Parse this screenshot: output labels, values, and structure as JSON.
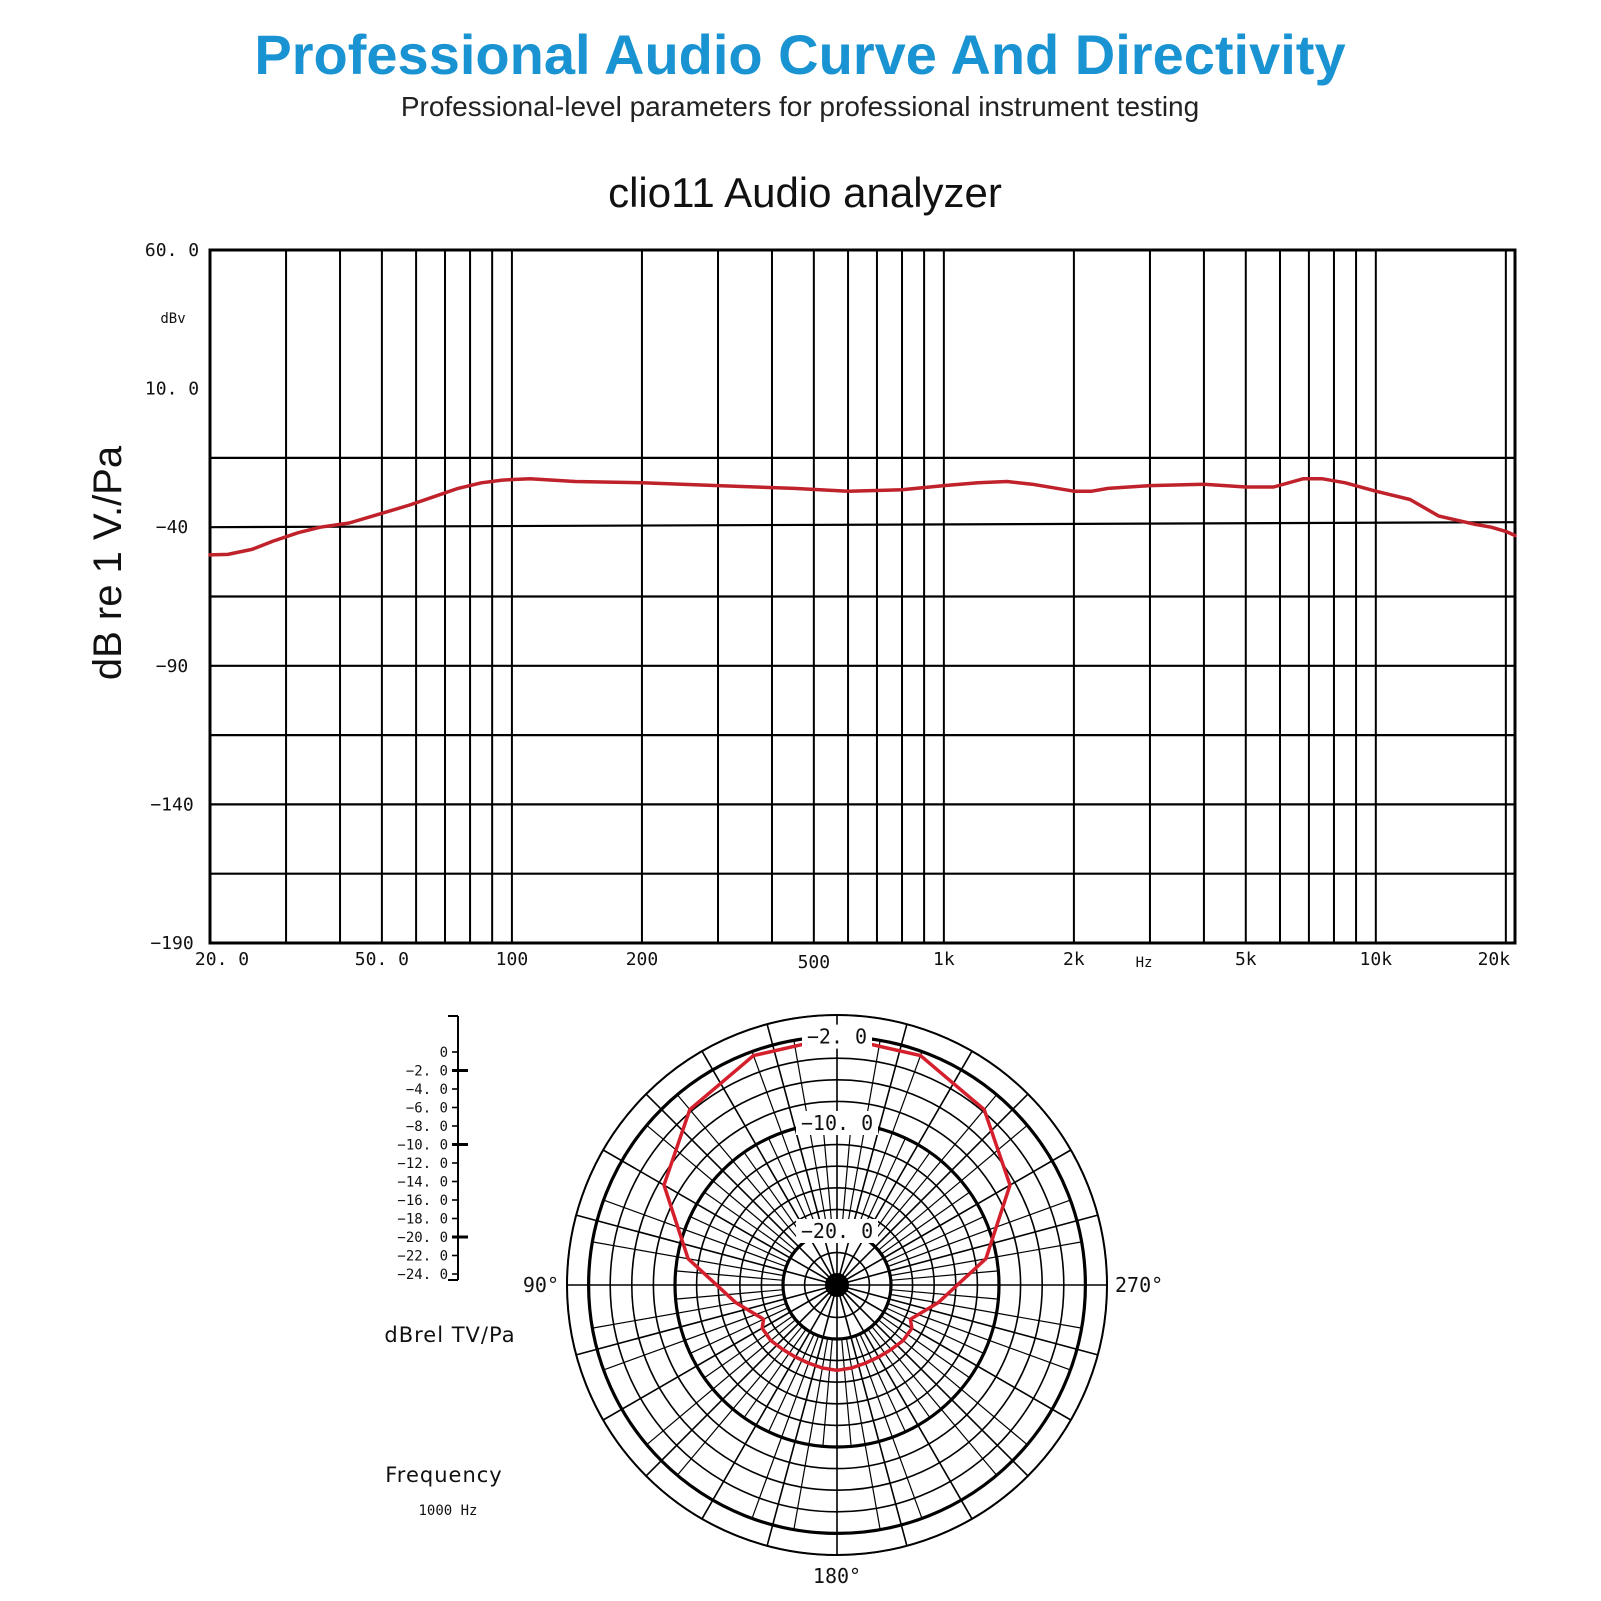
{
  "header": {
    "title": "Professional Audio Curve And Directivity",
    "subtitle": "Professional-level parameters for professional instrument testing",
    "title_color": "#1a93d2"
  },
  "chart_data": [
    {
      "type": "line",
      "title": "clio11 Audio analyzer",
      "ylabel": "dB re 1 V./Pa",
      "y_unit_label": "dBv",
      "x_unit_label": "Hz",
      "x_scale": "log",
      "xlim": [
        20,
        21000
      ],
      "ylim": [
        -190,
        60
      ],
      "x_tick_labels": [
        {
          "value": 20,
          "label": "20. 0"
        },
        {
          "value": 50,
          "label": "50. 0"
        },
        {
          "value": 100,
          "label": "100"
        },
        {
          "value": 200,
          "label": "200"
        },
        {
          "value": 500,
          "label": "500"
        },
        {
          "value": 1000,
          "label": "1k"
        },
        {
          "value": 2000,
          "label": "2k"
        },
        {
          "value": 5000,
          "label": "5k"
        },
        {
          "value": 10000,
          "label": "10k"
        },
        {
          "value": 20000,
          "label": "20k"
        }
      ],
      "y_tick_labels": [
        {
          "value": 60,
          "label": "60. 0"
        },
        {
          "value": 10,
          "label": "10. 0"
        },
        {
          "value": -40,
          "label": "−40"
        },
        {
          "value": -90,
          "label": "−90"
        },
        {
          "value": -140,
          "label": "−140"
        },
        {
          "value": -190,
          "label": "−190"
        }
      ],
      "grid": true,
      "series_color": "#c0222b",
      "series": [
        {
          "x": [
            20,
            22,
            25,
            28,
            32,
            36,
            42,
            50,
            58,
            66,
            75,
            85,
            95,
            110,
            140,
            200,
            300,
            450,
            600,
            800,
            1000,
            1200,
            1400,
            1600,
            2000,
            2200,
            2400,
            3000,
            4000,
            5000,
            5800,
            6800,
            7500,
            8500,
            10000,
            12000,
            14000,
            17000,
            18500,
            20000,
            21000
          ],
          "y": [
            -50,
            -49.8,
            -48,
            -45,
            -42,
            -40,
            -38.5,
            -35,
            -32,
            -29,
            -26,
            -24,
            -23,
            -22.5,
            -23.5,
            -24,
            -25,
            -26,
            -27,
            -26.5,
            -25,
            -24,
            -23.5,
            -24.5,
            -27,
            -27,
            -26,
            -25,
            -24.5,
            -25.5,
            -25.5,
            -22.5,
            -22.5,
            -24,
            -27,
            -30,
            -36,
            -39,
            -40,
            -41.5,
            -43
          ]
        }
      ]
    },
    {
      "type": "polar",
      "radial_unit_label": "dBrel TV/Pa",
      "frequency_label": "Frequency",
      "frequency_value": "1000 Hz",
      "r_range": [
        -25,
        0
      ],
      "scale_tick_labels": [
        "0",
        "−2. 0",
        "−4. 0",
        "−6. 0",
        "−8. 0",
        "−10. 0",
        "−12. 0",
        "−14. 0",
        "−16. 0",
        "−18. 0",
        "−20. 0",
        "−22. 0",
        "−24. 0"
      ],
      "ring_labels": [
        {
          "value": -2,
          "label": "−2. 0"
        },
        {
          "value": -10,
          "label": "−10. 0"
        },
        {
          "value": -20,
          "label": "−20. 0"
        }
      ],
      "angle_labels": [
        {
          "angle": 90,
          "label": "90°"
        },
        {
          "angle": 180,
          "label": "180°"
        },
        {
          "angle": 270,
          "label": "270°"
        }
      ],
      "series_color": "#d4202c",
      "series": [
        {
          "angle": [
            0,
            20,
            40,
            60,
            80,
            100,
            115,
            120,
            130,
            140,
            150,
            160,
            170,
            180,
            190,
            200,
            210,
            220,
            230,
            240,
            245,
            260,
            280,
            300,
            320,
            340,
            360
          ],
          "r": [
            -2,
            -2.4,
            -3.8,
            -6.5,
            -11,
            -15.5,
            -17.5,
            -17,
            -17,
            -17.2,
            -17.3,
            -17.3,
            -17.2,
            -17.1,
            -17.2,
            -17.3,
            -17.3,
            -17.2,
            -17,
            -17,
            -17.5,
            -15.5,
            -11,
            -6.5,
            -3.8,
            -2.4,
            -2
          ]
        }
      ]
    }
  ]
}
